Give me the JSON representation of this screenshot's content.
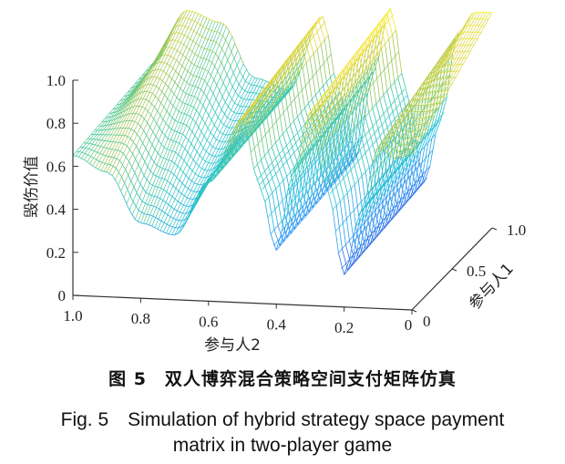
{
  "chart_data": {
    "type": "surface",
    "zlabel": "毁伤价值",
    "xlabel": "参与人2",
    "ylabel": "参与人1",
    "z_ticks": [
      "1.0",
      "0.8",
      "0.6",
      "0.4",
      "0.2",
      "0"
    ],
    "x_ticks": [
      "1.0",
      "0.8",
      "0.6",
      "0.4",
      "0.2",
      "0"
    ],
    "y_ticks": [
      "0",
      "0.5",
      "1.0"
    ],
    "x_range": [
      0,
      1
    ],
    "y_range": [
      0,
      1
    ],
    "z_range": [
      0,
      1
    ],
    "colormap": "parula",
    "approx_profile": {
      "x": [
        1.0,
        0.9,
        0.8,
        0.7,
        0.6,
        0.5,
        0.45,
        0.4,
        0.35,
        0.3,
        0.25,
        0.2,
        0.15,
        0.1,
        0.05,
        0.0
      ],
      "z_at_y0": [
        0.65,
        0.58,
        0.35,
        0.3,
        0.55,
        0.85,
        0.55,
        0.25,
        0.62,
        0.9,
        0.55,
        0.15,
        0.45,
        0.75,
        0.7,
        0.72
      ],
      "z_at_y1": [
        0.7,
        0.95,
        0.9,
        0.65,
        0.6,
        0.95,
        0.6,
        0.3,
        0.7,
        1.0,
        0.6,
        0.2,
        0.5,
        0.9,
        1.0,
        1.0
      ]
    }
  },
  "caption": {
    "cn": "图 5　双人博弈混合策略空间支付矩阵仿真",
    "en_line1": "Fig. 5　Simulation of hybrid strategy space payment",
    "en_line2": "matrix in two-player game"
  }
}
